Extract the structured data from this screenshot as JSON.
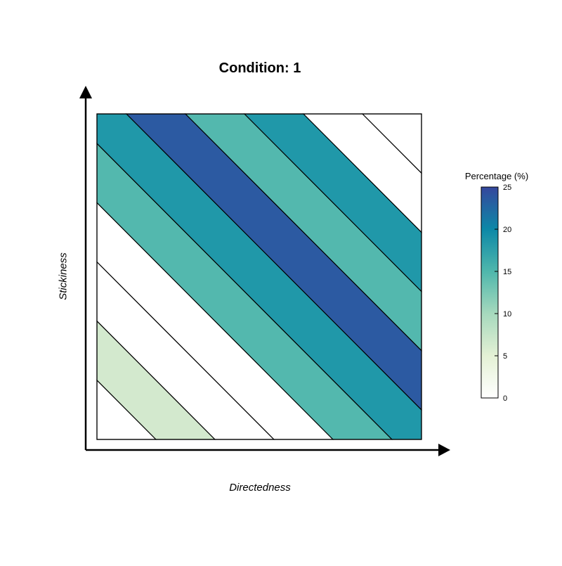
{
  "chart_data": {
    "type": "heatmap",
    "title": "Condition: 1",
    "xlabel": "Directedness",
    "ylabel": "Stickiness",
    "description_of_bands": "diagonal bands ordered from bottom-left corner to top-right corner",
    "bands": [
      {
        "value": 0
      },
      {
        "value": 6
      },
      {
        "value": 0
      },
      {
        "value": 0
      },
      {
        "value": 14
      },
      {
        "value": 18
      },
      {
        "value": 24
      },
      {
        "value": 14
      },
      {
        "value": 18
      },
      {
        "value": 0
      },
      {
        "value": 0
      }
    ],
    "colorbar": {
      "title": "Percentage (%)",
      "min": 0,
      "max": 25,
      "ticks": [
        "0",
        "5",
        "10",
        "15",
        "20",
        "25"
      ],
      "tick_values": [
        0,
        5,
        10,
        15,
        20,
        25
      ],
      "colors": [
        "#ffffff",
        "#e0eed2",
        "#8fcfb8",
        "#42b2ab",
        "#0a87a8",
        "#2d9bc2",
        "#354fa1"
      ]
    }
  }
}
